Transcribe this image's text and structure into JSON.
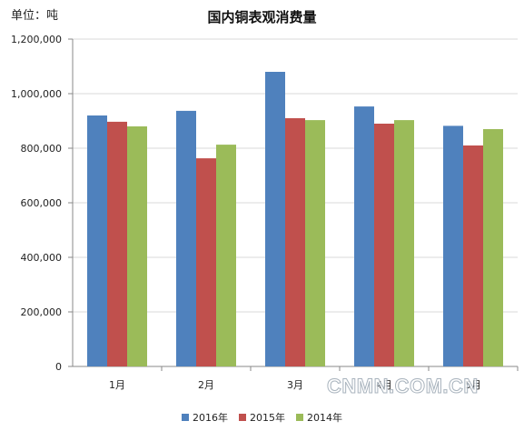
{
  "unit_label": "单位：吨",
  "watermark": "CNMN.COM.CN",
  "colors": {
    "2016年": "#4f81bd",
    "2015年": "#c0504d",
    "2014年": "#9bbb59"
  },
  "chart_data": {
    "type": "bar",
    "title": "国内铜表观消费量",
    "categories": [
      "1月",
      "2月",
      "3月",
      "4月",
      "5月"
    ],
    "series": [
      {
        "name": "2016年",
        "values": [
          920000,
          937000,
          1080000,
          953000,
          882000
        ]
      },
      {
        "name": "2015年",
        "values": [
          897000,
          763000,
          910000,
          890000,
          810000
        ]
      },
      {
        "name": "2014年",
        "values": [
          880000,
          813000,
          903000,
          903000,
          870000
        ]
      }
    ],
    "ylim": [
      0,
      1200000
    ],
    "yticks": [
      0,
      200000,
      400000,
      600000,
      800000,
      1000000,
      1200000
    ],
    "ytick_labels": [
      "0",
      "200,000",
      "400,000",
      "600,000",
      "800,000",
      "1,000,000",
      "1,200,000"
    ],
    "grid": true,
    "legend_position": "bottom"
  }
}
